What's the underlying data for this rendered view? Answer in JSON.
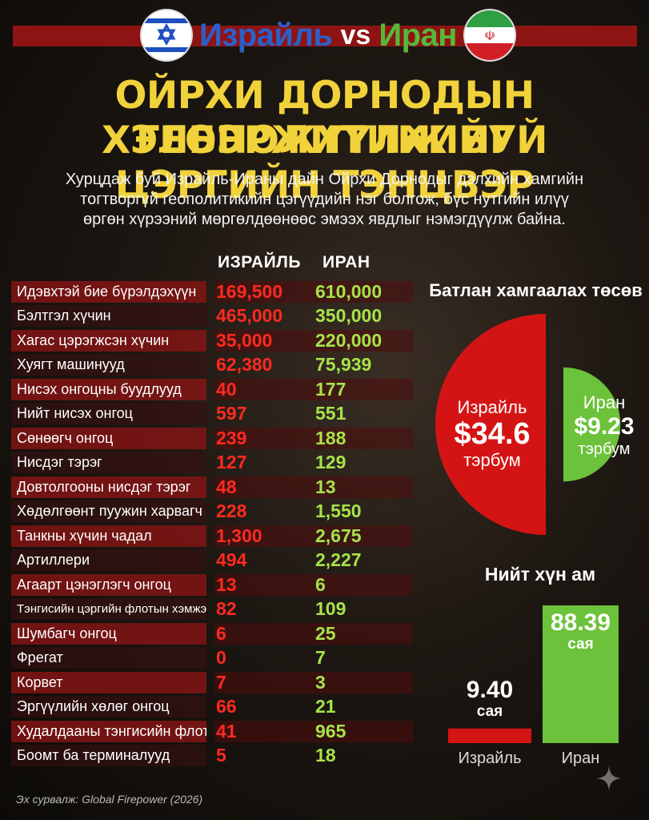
{
  "header": {
    "left_name": "Израйль",
    "vs": "vs",
    "right_name": "Иран",
    "left_color": "#2a60c8",
    "right_color": "#56b83a"
  },
  "title": {
    "line1": "ОЙРХИ ДОРНОДЫН ГЕОПОЛИТИКИЙГ",
    "line2": "ХЭЛБЭРЖҮҮЛЖ БУЙ ЦЭРГИЙН ТЭНЦВЭР"
  },
  "intro": {
    "line1": "Хурцдаж буй Израйль-Ираны дайн Ойрхи Дорнодыг дэлхийн хамгийн",
    "line2": "тогтворгүй геополитикийн цэгүүдийн нэг болгож, бүс нутгийн илүү",
    "line3": "өргөн хүрээний мөргөлдөөнөөс эмээх явдлыг нэмэгдүүлж байна."
  },
  "source": "Эх сурвалж: Global Firepower (2026)",
  "chart_data": [
    {
      "type": "table",
      "columns": [
        "",
        "ИЗРАЙЛЬ",
        "ИРАН"
      ],
      "rows": [
        [
          "Идэвхтэй бие бүрэлдэхүүн",
          "169,500",
          "610,000"
        ],
        [
          "Бэлтгэл хүчин",
          "465,000",
          "350,000"
        ],
        [
          "Хагас цэрэгжсэн хүчин",
          "35,000",
          "220,000"
        ],
        [
          "Хуягт машинууд",
          "62,380",
          "75,939"
        ],
        [
          "Нисэх онгоцны буудлууд",
          "40",
          "177"
        ],
        [
          "Нийт нисэх онгоц",
          "597",
          "551"
        ],
        [
          "Сөнөөгч онгоц",
          "239",
          "188"
        ],
        [
          "Нисдэг тэрэг",
          "127",
          "129"
        ],
        [
          "Довтолгооны нисдэг тэрэг",
          "48",
          "13"
        ],
        [
          "Хөдөлгөөнт пуужин харвагч",
          "228",
          "1,550"
        ],
        [
          "Танкны хүчин чадал",
          "1,300",
          "2,675"
        ],
        [
          "Артиллери",
          "494",
          "2,227"
        ],
        [
          "Агаарт цэнэглэгч онгоц",
          "13",
          "6"
        ],
        [
          "Тэнгисийн цэргийн флотын хэмжээ",
          "82",
          "109"
        ],
        [
          "Шумбагч онгоц",
          "6",
          "25"
        ],
        [
          "Фрегат",
          "0",
          "7"
        ],
        [
          "Корвет",
          "7",
          "3"
        ],
        [
          "Эргүүлийн хөлөг онгоц",
          "66",
          "21"
        ],
        [
          "Худалдааны тэнгисийн флот",
          "41",
          "965"
        ],
        [
          "Боомт ба терминалууд",
          "5",
          "18"
        ]
      ]
    },
    {
      "type": "pie",
      "title": "Батлан хамгаалах төсөв",
      "unit": "тэрбум",
      "series": [
        {
          "name": "Израйль",
          "value": 34.6,
          "label": "$34.6",
          "color": "#d41414"
        },
        {
          "name": "Иран",
          "value": 9.23,
          "label": "$9.23",
          "color": "#6cc23a"
        }
      ]
    },
    {
      "type": "bar",
      "title": "Нийт хүн ам",
      "unit": "сая",
      "categories": [
        "Израйль",
        "Иран"
      ],
      "values": [
        9.4,
        88.39
      ],
      "labels": [
        "9.40",
        "88.39"
      ],
      "colors": [
        "#d41414",
        "#6cc23a"
      ]
    }
  ]
}
